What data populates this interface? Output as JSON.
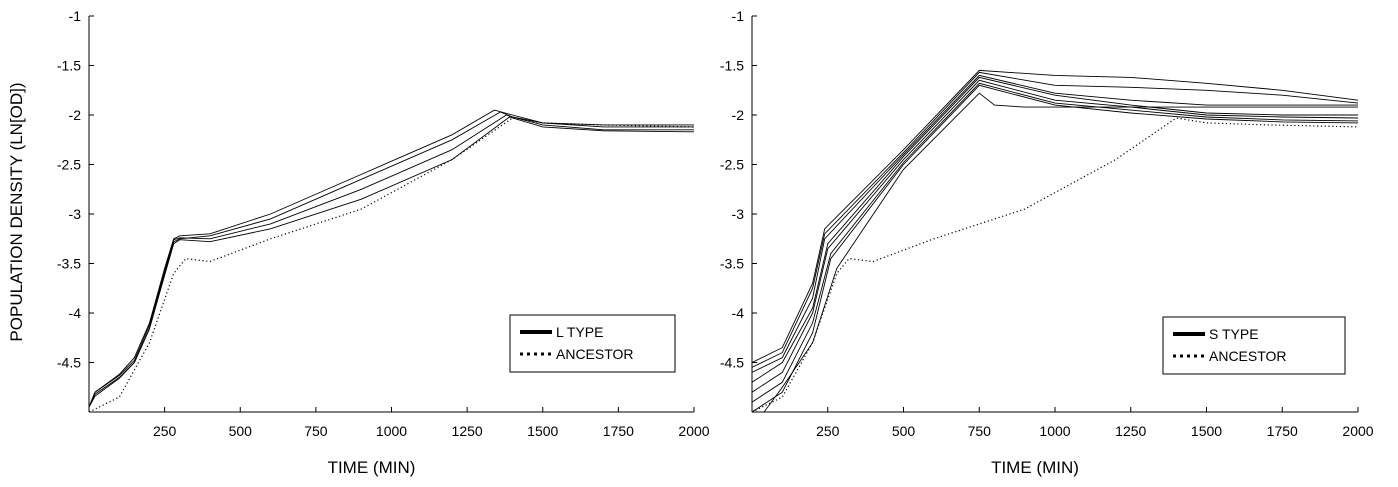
{
  "chart_data": [
    {
      "type": "line",
      "title": "",
      "xlabel": "TIME (MIN)",
      "ylabel": "POPULATION DENSITY (LN[OD])",
      "xlim": [
        0,
        2000
      ],
      "ylim": [
        -5,
        -1
      ],
      "xticks": [
        250,
        500,
        750,
        1000,
        1250,
        1500,
        1750,
        2000
      ],
      "yticks": [
        -4.5,
        -4,
        -3.5,
        -3,
        -2.5,
        -2,
        -1.5,
        -1
      ],
      "grid": false,
      "legend_position": "bottom-right",
      "legend": [
        {
          "label": "L TYPE",
          "style": "solid"
        },
        {
          "label": "ANCESTOR",
          "style": "dotted"
        }
      ],
      "series": [
        {
          "name": "ANCESTOR",
          "style": "dotted",
          "x": [
            0,
            100,
            200,
            280,
            320,
            400,
            600,
            900,
            1200,
            1400,
            1500,
            1700,
            2000
          ],
          "y": [
            -5.0,
            -4.85,
            -4.3,
            -3.6,
            -3.45,
            -3.48,
            -3.25,
            -2.95,
            -2.45,
            -2.03,
            -2.08,
            -2.1,
            -2.12
          ]
        },
        {
          "style": "solid",
          "x": [
            0,
            20,
            100,
            150,
            200,
            250,
            280,
            300,
            400,
            600,
            900,
            1200,
            1340,
            1400,
            1500,
            1700,
            2000
          ],
          "y": [
            -4.95,
            -4.8,
            -4.62,
            -4.45,
            -4.1,
            -3.55,
            -3.25,
            -3.22,
            -3.2,
            -3.0,
            -2.6,
            -2.2,
            -1.95,
            -2.0,
            -2.08,
            -2.1,
            -2.1
          ]
        },
        {
          "style": "solid",
          "x": [
            0,
            20,
            100,
            150,
            200,
            250,
            280,
            300,
            400,
            600,
            900,
            1200,
            1360,
            1400,
            1500,
            1700,
            2000
          ],
          "y": [
            -4.95,
            -4.82,
            -4.65,
            -4.5,
            -4.15,
            -3.6,
            -3.28,
            -3.25,
            -3.22,
            -3.05,
            -2.65,
            -2.25,
            -1.97,
            -2.02,
            -2.08,
            -2.12,
            -2.12
          ]
        },
        {
          "style": "solid",
          "x": [
            0,
            20,
            100,
            150,
            200,
            250,
            280,
            300,
            400,
            600,
            900,
            1200,
            1380,
            1400,
            1500,
            1700,
            2000
          ],
          "y": [
            -4.95,
            -4.8,
            -4.63,
            -4.48,
            -4.12,
            -3.58,
            -3.26,
            -3.24,
            -3.25,
            -3.1,
            -2.75,
            -2.35,
            -2.0,
            -2.02,
            -2.1,
            -2.15,
            -2.15
          ]
        },
        {
          "style": "solid",
          "x": [
            0,
            20,
            100,
            150,
            200,
            250,
            280,
            300,
            400,
            600,
            900,
            1200,
            1390,
            1400,
            1500,
            1700,
            2000
          ],
          "y": [
            -4.95,
            -4.84,
            -4.66,
            -4.5,
            -4.16,
            -3.62,
            -3.3,
            -3.26,
            -3.28,
            -3.15,
            -2.85,
            -2.45,
            -2.02,
            -2.03,
            -2.12,
            -2.16,
            -2.17
          ]
        }
      ]
    },
    {
      "type": "line",
      "title": "",
      "xlabel": "TIME (MIN)",
      "ylabel": "",
      "xlim": [
        0,
        2000
      ],
      "ylim": [
        -5,
        -1
      ],
      "xticks": [
        250,
        500,
        750,
        1000,
        1250,
        1500,
        1750,
        2000
      ],
      "yticks": [
        -4.5,
        -4,
        -3.5,
        -3,
        -2.5,
        -2,
        -1.5,
        -1
      ],
      "grid": false,
      "legend_position": "bottom-right",
      "legend": [
        {
          "label": "S TYPE",
          "style": "solid"
        },
        {
          "label": "ANCESTOR",
          "style": "dotted"
        }
      ],
      "series": [
        {
          "name": "ANCESTOR",
          "style": "dotted",
          "x": [
            0,
            100,
            200,
            280,
            320,
            400,
            600,
            900,
            1200,
            1400,
            1500,
            1700,
            2000
          ],
          "y": [
            -5.0,
            -4.85,
            -4.3,
            -3.6,
            -3.45,
            -3.48,
            -3.25,
            -2.95,
            -2.45,
            -2.03,
            -2.08,
            -2.1,
            -2.12
          ]
        },
        {
          "style": "solid",
          "x": [
            0,
            100,
            200,
            240,
            500,
            750,
            1000,
            1250,
            1500,
            1750,
            2000
          ],
          "y": [
            -4.5,
            -4.35,
            -3.7,
            -3.15,
            -2.35,
            -1.55,
            -1.6,
            -1.62,
            -1.68,
            -1.75,
            -1.85
          ]
        },
        {
          "style": "solid",
          "x": [
            0,
            100,
            200,
            240,
            500,
            750,
            1000,
            1250,
            1500,
            1750,
            2000
          ],
          "y": [
            -4.55,
            -4.4,
            -3.75,
            -3.2,
            -2.38,
            -1.57,
            -1.7,
            -1.72,
            -1.75,
            -1.8,
            -1.88
          ]
        },
        {
          "style": "solid",
          "x": [
            0,
            100,
            200,
            240,
            500,
            750,
            1000,
            1250,
            1500,
            1750,
            2000
          ],
          "y": [
            -4.6,
            -4.45,
            -3.85,
            -3.25,
            -2.4,
            -1.6,
            -1.78,
            -1.85,
            -1.9,
            -1.9,
            -1.9
          ]
        },
        {
          "style": "solid",
          "x": [
            0,
            100,
            200,
            250,
            500,
            750,
            1000,
            1250,
            1500,
            1750,
            2000
          ],
          "y": [
            -4.7,
            -4.5,
            -3.95,
            -3.3,
            -2.42,
            -1.62,
            -1.8,
            -1.9,
            -1.98,
            -2.0,
            -2.0
          ]
        },
        {
          "style": "solid",
          "x": [
            0,
            100,
            200,
            250,
            500,
            750,
            1000,
            1250,
            1500,
            1750,
            2000
          ],
          "y": [
            -4.8,
            -4.6,
            -4.0,
            -3.35,
            -2.45,
            -1.65,
            -1.85,
            -1.92,
            -2.0,
            -2.02,
            -2.03
          ]
        },
        {
          "style": "solid",
          "x": [
            0,
            100,
            200,
            260,
            500,
            750,
            1000,
            1250,
            1500,
            1750,
            2000
          ],
          "y": [
            -4.9,
            -4.7,
            -4.1,
            -3.4,
            -2.48,
            -1.68,
            -1.88,
            -1.95,
            -2.02,
            -2.05,
            -2.06
          ]
        },
        {
          "style": "solid",
          "x": [
            0,
            100,
            200,
            260,
            500,
            750,
            1000,
            1250,
            1500,
            1750,
            2000
          ],
          "y": [
            -5.0,
            -4.8,
            -4.2,
            -3.45,
            -2.5,
            -1.7,
            -1.9,
            -1.98,
            -2.04,
            -2.07,
            -2.08
          ]
        },
        {
          "style": "solid",
          "x": [
            40,
            100,
            200,
            280,
            500,
            750,
            800,
            900,
            1250,
            1500,
            1750,
            2000
          ],
          "y": [
            -5.0,
            -4.75,
            -4.3,
            -3.55,
            -2.55,
            -1.78,
            -1.9,
            -1.92,
            -1.92,
            -1.92,
            -1.92,
            -1.92
          ]
        }
      ]
    }
  ]
}
